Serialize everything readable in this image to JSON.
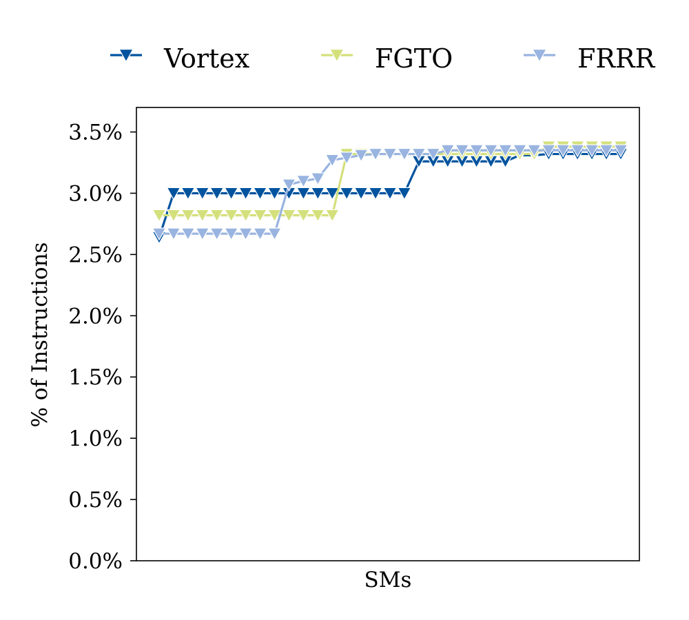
{
  "chart_data": {
    "type": "line",
    "title": "",
    "xlabel": "SMs",
    "ylabel": "% of Instructions",
    "ylim": [
      0.0,
      3.7
    ],
    "y_ticks": [
      0.0,
      0.5,
      1.0,
      1.5,
      2.0,
      2.5,
      3.0,
      3.5
    ],
    "y_tick_format": "percent_1dp",
    "x_ticks_shown": false,
    "grid": false,
    "legend": {
      "placement": "top",
      "columns": 3
    },
    "marker": "triangle-down",
    "series": [
      {
        "name": "Vortex",
        "color": "#00539f",
        "values": [
          2.64,
          3.0,
          3.0,
          3.0,
          3.0,
          3.0,
          3.0,
          3.0,
          3.0,
          3.0,
          3.0,
          3.0,
          3.0,
          3.0,
          3.0,
          3.0,
          3.0,
          3.0,
          3.26,
          3.26,
          3.26,
          3.26,
          3.26,
          3.26,
          3.26,
          3.31,
          3.31,
          3.32,
          3.32,
          3.32,
          3.32,
          3.32,
          3.32
        ]
      },
      {
        "name": "FGTO",
        "color": "#d4e07c",
        "values": [
          2.82,
          2.82,
          2.82,
          2.82,
          2.82,
          2.82,
          2.82,
          2.82,
          2.82,
          2.82,
          2.82,
          2.82,
          2.82,
          3.32,
          3.32,
          3.32,
          3.32,
          3.32,
          3.32,
          3.32,
          3.32,
          3.32,
          3.32,
          3.32,
          3.32,
          3.32,
          3.32,
          3.38,
          3.38,
          3.38,
          3.38,
          3.38,
          3.38
        ]
      },
      {
        "name": "FRRR",
        "color": "#99b4e0",
        "values": [
          2.67,
          2.67,
          2.67,
          2.67,
          2.67,
          2.67,
          2.67,
          2.67,
          2.67,
          3.07,
          3.1,
          3.12,
          3.27,
          3.29,
          3.31,
          3.32,
          3.32,
          3.32,
          3.32,
          3.32,
          3.35,
          3.35,
          3.35,
          3.35,
          3.35,
          3.35,
          3.35,
          3.35,
          3.35,
          3.35,
          3.35,
          3.35,
          3.35
        ]
      }
    ]
  }
}
